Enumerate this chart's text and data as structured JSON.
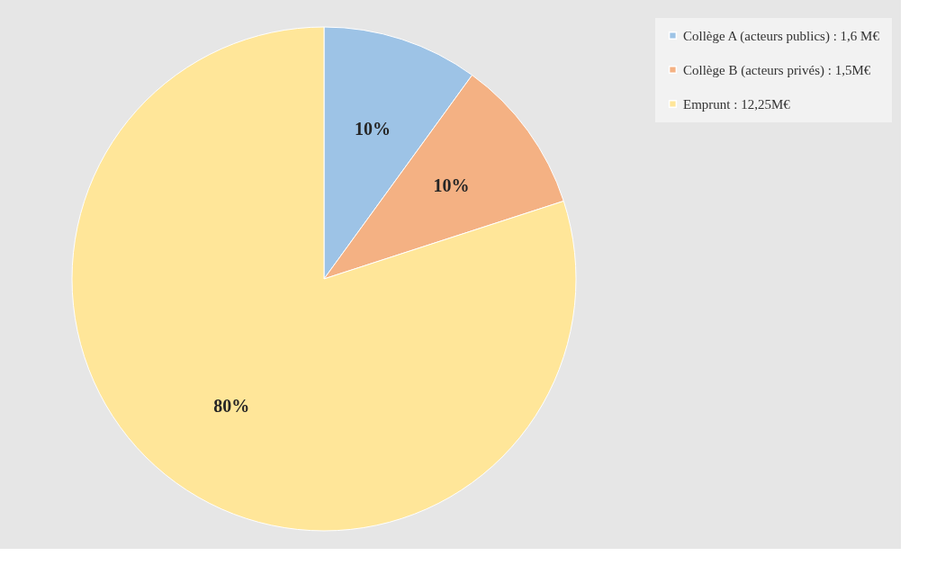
{
  "chart_data": {
    "type": "pie",
    "categories": [
      "Collège A (acteurs publics) : 1,6 M€",
      "Collège B (acteurs privés) : 1,5M€",
      "Emprunt : 12,25M€"
    ],
    "values": [
      10,
      10,
      80
    ],
    "value_labels": [
      "10%",
      "10%",
      "80%"
    ],
    "colors": [
      "#9dc3e6",
      "#f4b183",
      "#ffe699"
    ],
    "legend": "right"
  }
}
